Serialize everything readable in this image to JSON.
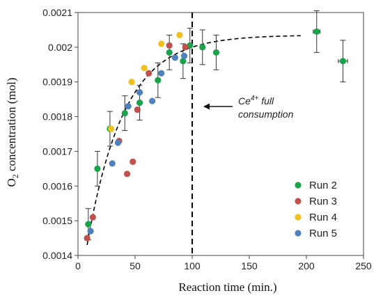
{
  "chart_data": {
    "type": "scatter",
    "title": "",
    "xlabel": "Reaction time (min.)",
    "ylabel_main": "O",
    "ylabel_sub": "2",
    "ylabel_rest": " concentration (mol)",
    "xlim": [
      0,
      250
    ],
    "ylim": [
      0.0014,
      0.0021
    ],
    "xticks": [
      "0",
      "50",
      "100",
      "150",
      "200",
      "250"
    ],
    "yticks": [
      "0.0014",
      "0.0015",
      "0.0016",
      "0.0017",
      "0.0018",
      "0.0019",
      "0.002",
      "0.0021"
    ],
    "grid": false,
    "legend_position": "bottom-right",
    "annotation": {
      "line1_prefix": "Ce",
      "line1_sup": "4+",
      "line1_suffix": " full",
      "line2": "consumption",
      "vline_x": 100
    },
    "series": [
      {
        "name": "Run 2",
        "color": "#1aa34a",
        "points": [
          {
            "x": 9,
            "y": 0.00149,
            "err": 4.5e-05
          },
          {
            "x": 17,
            "y": 0.00165,
            "err": 5e-05
          },
          {
            "x": 28,
            "y": 0.001765,
            "err": 5e-05
          },
          {
            "x": 41,
            "y": 0.00181,
            "err": 5e-05
          },
          {
            "x": 54,
            "y": 0.00184,
            "err": 5e-05
          },
          {
            "x": 70,
            "y": 0.001905,
            "err": 5e-05
          },
          {
            "x": 80,
            "y": 0.001985,
            "err": 5e-05
          },
          {
            "x": 92,
            "y": 0.00196,
            "err": 5e-05
          },
          {
            "x": 98,
            "y": 0.002005,
            "err": 5e-05
          },
          {
            "x": 109,
            "y": 0.002,
            "err": 5e-05
          },
          {
            "x": 121,
            "y": 0.001985,
            "err": 5e-05
          },
          {
            "x": 209,
            "y": 0.002045,
            "err": 6e-05,
            "xerr": 3
          },
          {
            "x": 232,
            "y": 0.00196,
            "err": 6e-05,
            "xerr": 4
          }
        ]
      },
      {
        "name": "Run 3",
        "color": "#c0504d",
        "points": [
          {
            "x": 8,
            "y": 0.00145
          },
          {
            "x": 13,
            "y": 0.00151
          },
          {
            "x": 36,
            "y": 0.00173
          },
          {
            "x": 43,
            "y": 0.001635
          },
          {
            "x": 48,
            "y": 0.00167
          },
          {
            "x": 52,
            "y": 0.00182
          },
          {
            "x": 62,
            "y": 0.001925
          },
          {
            "x": 80,
            "y": 0.002005
          },
          {
            "x": 94,
            "y": 0.002
          }
        ]
      },
      {
        "name": "Run 4",
        "color": "#f2c01e",
        "points": [
          {
            "x": 29,
            "y": 0.001765
          },
          {
            "x": 47,
            "y": 0.0019
          },
          {
            "x": 58,
            "y": 0.00194
          },
          {
            "x": 73,
            "y": 0.00201
          },
          {
            "x": 89,
            "y": 0.002035
          }
        ]
      },
      {
        "name": "Run 5",
        "color": "#4f81bd",
        "points": [
          {
            "x": 11,
            "y": 0.00147
          },
          {
            "x": 30,
            "y": 0.001665
          },
          {
            "x": 35,
            "y": 0.001725
          },
          {
            "x": 44,
            "y": 0.00183
          },
          {
            "x": 54,
            "y": 0.00187
          },
          {
            "x": 65,
            "y": 0.001845
          },
          {
            "x": 73,
            "y": 0.001925
          },
          {
            "x": 85,
            "y": 0.00197
          },
          {
            "x": 93,
            "y": 0.001975
          }
        ]
      }
    ],
    "fit_curve": {
      "asymptote": 0.002035,
      "start_y": 0.00143,
      "start_x": 8,
      "rate": 0.031,
      "end_x": 195
    }
  }
}
